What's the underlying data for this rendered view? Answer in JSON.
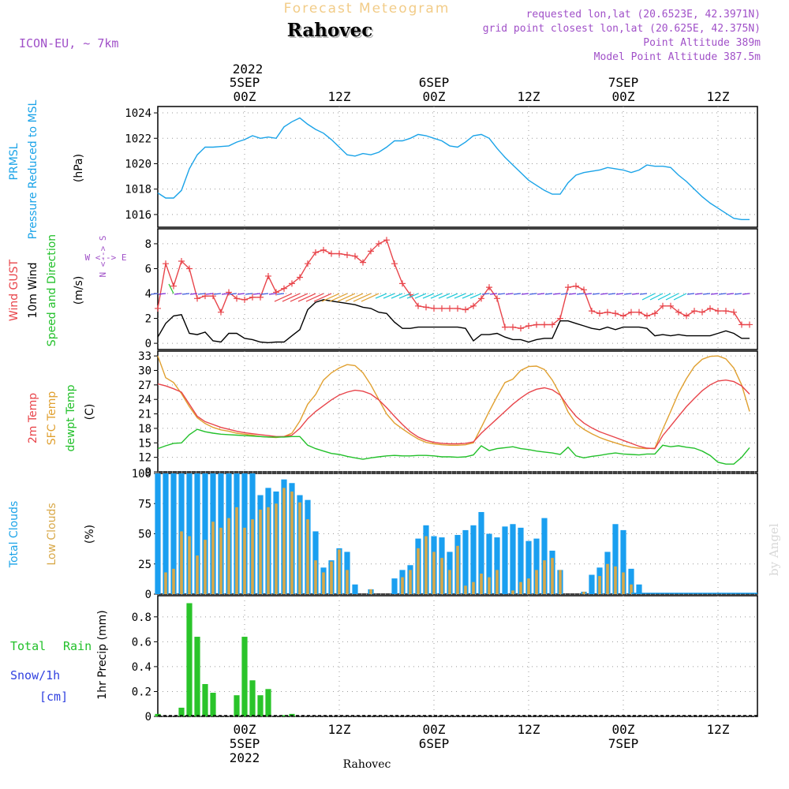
{
  "header": {
    "subtitle": "Forecast Meteogram",
    "location": "Rahovec",
    "model": "ICON-EU, ~ 7km",
    "requested": "requested lon,lat (20.6523E, 42.3971N)",
    "grid_point": "grid point closest lon,lat (20.625E, 42.375N)",
    "point_altitude": "Point Altitude 389m",
    "model_altitude": "Model Point Altitude 387.5m"
  },
  "footer": {
    "location": "Rahovec",
    "watermark": "by Angel"
  },
  "time_axis": {
    "year": "2022",
    "ticks": [
      {
        "hour": 0,
        "label": "00Z",
        "date": "5SEP"
      },
      {
        "hour": 12,
        "label": "12Z",
        "date": ""
      },
      {
        "hour": 24,
        "label": "00Z",
        "date": "6SEP"
      },
      {
        "hour": 36,
        "label": "12Z",
        "date": ""
      },
      {
        "hour": 48,
        "label": "00Z",
        "date": "7SEP"
      },
      {
        "hour": 60,
        "label": "12Z",
        "date": ""
      }
    ],
    "range_hours": [
      -11,
      65
    ]
  },
  "colors": {
    "pressure": "#1aa3e8",
    "gust": "#e8444a",
    "wind": "#000000",
    "wind_dir": "#22c02a",
    "temp": "#e8444a",
    "sfc": "#e0a030",
    "dewpt": "#22c02a",
    "total_clouds": "#1a9ff0",
    "low_clouds": "#d8a848",
    "rain": "#2ac42a",
    "snow": "#3040e0",
    "axis_label_purple": "#a050c8"
  },
  "chart_data": [
    {
      "type": "line",
      "id": "pressure",
      "labels": {
        "l1": "PRMSL",
        "l2": "Pressure Reduced to MSL",
        "unit": "(hPa)"
      },
      "ylim": [
        1015,
        1024.5
      ],
      "yticks": [
        "1016",
        "1018",
        "1020",
        "1022",
        "1024"
      ],
      "x": [
        -11,
        -10,
        -9,
        -8,
        -7,
        -6,
        -5,
        -4,
        -3,
        -2,
        -1,
        0,
        1,
        2,
        3,
        4,
        5,
        6,
        7,
        8,
        9,
        10,
        11,
        12,
        13,
        14,
        15,
        16,
        17,
        18,
        19,
        20,
        21,
        22,
        23,
        24,
        25,
        26,
        27,
        28,
        29,
        30,
        31,
        32,
        33,
        34,
        35,
        36,
        37,
        38,
        39,
        40,
        41,
        42,
        43,
        44,
        45,
        46,
        47,
        48,
        49,
        50,
        51,
        52,
        53,
        54,
        55,
        56,
        57,
        58,
        59,
        60,
        61,
        62,
        63,
        64
      ],
      "values": [
        1017.7,
        1017.3,
        1017.3,
        1017.9,
        1019.6,
        1020.7,
        1021.3,
        1021.3,
        1021.35,
        1021.4,
        1021.7,
        1021.9,
        1022.2,
        1022.0,
        1022.1,
        1022.0,
        1022.9,
        1023.3,
        1023.6,
        1023.1,
        1022.7,
        1022.4,
        1021.9,
        1021.3,
        1020.7,
        1020.6,
        1020.8,
        1020.7,
        1020.9,
        1021.3,
        1021.8,
        1021.8,
        1022.0,
        1022.3,
        1022.2,
        1022.0,
        1021.8,
        1021.4,
        1021.3,
        1021.7,
        1022.2,
        1022.3,
        1022.0,
        1021.2,
        1020.5,
        1019.9,
        1019.3,
        1018.7,
        1018.3,
        1017.9,
        1017.6,
        1017.6,
        1018.5,
        1019.1,
        1019.3,
        1019.4,
        1019.5,
        1019.7,
        1019.6,
        1019.5,
        1019.3,
        1019.5,
        1019.9,
        1019.8,
        1019.8,
        1019.7,
        1019.1,
        1018.6,
        1018.0,
        1017.4,
        1016.9,
        1016.5,
        1016.1,
        1015.7,
        1015.6,
        1015.6
      ]
    },
    {
      "type": "line",
      "id": "wind",
      "labels": {
        "l1": "Wind GUST",
        "l2": "10m Wind",
        "l3": "Speed and Direction",
        "unit": "(m/s)",
        "compass_ns": "N <--> S",
        "compass_we": "W <--> E",
        "compass_n": "N",
        "compass_s": "S"
      },
      "ylim": [
        -0.5,
        9.2
      ],
      "yticks": [
        "0",
        "2",
        "4",
        "6",
        "8"
      ],
      "x": [
        -11,
        -10,
        -9,
        -8,
        -7,
        -6,
        -5,
        -4,
        -3,
        -2,
        -1,
        0,
        1,
        2,
        3,
        4,
        5,
        6,
        7,
        8,
        9,
        10,
        11,
        12,
        13,
        14,
        15,
        16,
        17,
        18,
        19,
        20,
        21,
        22,
        23,
        24,
        25,
        26,
        27,
        28,
        29,
        30,
        31,
        32,
        33,
        34,
        35,
        36,
        37,
        38,
        39,
        40,
        41,
        42,
        43,
        44,
        45,
        46,
        47,
        48,
        49,
        50,
        51,
        52,
        53,
        54,
        55,
        56,
        57,
        58,
        59,
        60,
        61,
        62,
        63,
        64
      ],
      "series": [
        {
          "name": "Wind GUST",
          "values": [
            2.8,
            6.4,
            4.6,
            6.6,
            6.0,
            3.6,
            3.8,
            3.8,
            2.5,
            4.1,
            3.6,
            3.5,
            3.7,
            3.7,
            5.4,
            4.1,
            4.4,
            4.8,
            5.3,
            6.4,
            7.3,
            7.5,
            7.2,
            7.2,
            7.1,
            7.0,
            6.5,
            7.4,
            8.0,
            8.3,
            6.4,
            4.8,
            3.9,
            3.0,
            2.9,
            2.8,
            2.8,
            2.8,
            2.8,
            2.7,
            3.0,
            3.6,
            4.5,
            3.6,
            1.3,
            1.3,
            1.2,
            1.4,
            1.5,
            1.5,
            1.5,
            2.0,
            4.5,
            4.6,
            4.3,
            2.6,
            2.4,
            2.5,
            2.4,
            2.2,
            2.5,
            2.5,
            2.2,
            2.4,
            3.0,
            3.0,
            2.5,
            2.2,
            2.6,
            2.5,
            2.8,
            2.6,
            2.6,
            2.5,
            1.5,
            1.5
          ]
        },
        {
          "name": "10m Wind",
          "values": [
            0.5,
            1.6,
            2.2,
            2.3,
            0.8,
            0.7,
            0.9,
            0.2,
            0.1,
            0.8,
            0.8,
            0.4,
            0.3,
            0.1,
            0.05,
            0.1,
            0.1,
            0.6,
            1.1,
            2.7,
            3.3,
            3.5,
            3.4,
            3.3,
            3.2,
            3.1,
            2.9,
            2.8,
            2.5,
            2.4,
            1.7,
            1.2,
            1.2,
            1.3,
            1.3,
            1.3,
            1.3,
            1.3,
            1.3,
            1.2,
            0.2,
            0.7,
            0.7,
            0.8,
            0.5,
            0.3,
            0.3,
            0.1,
            0.3,
            0.4,
            0.4,
            1.8,
            1.8,
            1.6,
            1.4,
            1.2,
            1.1,
            1.3,
            1.1,
            1.3,
            1.3,
            1.3,
            1.2,
            0.6,
            0.7,
            0.6,
            0.7,
            0.6,
            0.6,
            0.6,
            0.6,
            0.8,
            1.0,
            0.8,
            0.4,
            0.4
          ]
        }
      ]
    },
    {
      "type": "line",
      "id": "temperature",
      "labels": {
        "l1": "2m Temp",
        "l2": "SFC Temp",
        "l3": "dewpt Temp",
        "unit": "(C)"
      },
      "ylim": [
        9,
        34
      ],
      "yticks": [
        "9",
        "12",
        "15",
        "18",
        "21",
        "24",
        "27",
        "30",
        "33"
      ],
      "x": [
        -11,
        -10,
        -9,
        -8,
        -7,
        -6,
        -5,
        -4,
        -3,
        -2,
        -1,
        0,
        1,
        2,
        3,
        4,
        5,
        6,
        7,
        8,
        9,
        10,
        11,
        12,
        13,
        14,
        15,
        16,
        17,
        18,
        19,
        20,
        21,
        22,
        23,
        24,
        25,
        26,
        27,
        28,
        29,
        30,
        31,
        32,
        33,
        34,
        35,
        36,
        37,
        38,
        39,
        40,
        41,
        42,
        43,
        44,
        45,
        46,
        47,
        48,
        49,
        50,
        51,
        52,
        53,
        54,
        55,
        56,
        57,
        58,
        59,
        60,
        61,
        62,
        63,
        64
      ],
      "series": [
        {
          "name": "2m Temp",
          "values": [
            27.2,
            26.8,
            26.2,
            25.5,
            23.0,
            20.5,
            19.4,
            18.8,
            18.2,
            17.8,
            17.4,
            17.1,
            16.9,
            16.7,
            16.5,
            16.3,
            16.3,
            16.6,
            18.0,
            20.0,
            21.5,
            22.7,
            23.9,
            24.9,
            25.5,
            25.9,
            25.7,
            25.1,
            23.9,
            22.3,
            20.5,
            18.8,
            17.3,
            16.2,
            15.5,
            15.1,
            14.9,
            14.8,
            14.8,
            14.9,
            15.2,
            17.0,
            18.5,
            20.0,
            21.5,
            23.0,
            24.3,
            25.4,
            26.1,
            26.4,
            26.0,
            24.9,
            22.5,
            20.5,
            19.1,
            18.1,
            17.3,
            16.7,
            16.1,
            15.5,
            14.9,
            14.3,
            13.9,
            13.8,
            16.5,
            18.5,
            20.5,
            22.5,
            24.2,
            25.8,
            27.0,
            27.8,
            28.0,
            27.7,
            26.8,
            25.1
          ]
        },
        {
          "name": "SFC Temp",
          "values": [
            33.0,
            28.5,
            27.5,
            25.2,
            22.5,
            20.2,
            19.0,
            18.2,
            17.7,
            17.4,
            17.0,
            16.8,
            16.6,
            16.3,
            16.2,
            16.1,
            16.3,
            17.0,
            19.5,
            23.0,
            25.0,
            28.0,
            29.5,
            30.5,
            31.2,
            31.0,
            29.5,
            27.0,
            24.0,
            21.0,
            19.1,
            17.9,
            16.8,
            15.8,
            15.1,
            14.8,
            14.6,
            14.5,
            14.5,
            14.6,
            15.0,
            18.2,
            21.5,
            24.6,
            27.5,
            28.2,
            30.0,
            30.8,
            30.9,
            30.2,
            28.0,
            25.0,
            21.4,
            19.0,
            17.8,
            16.9,
            16.1,
            15.5,
            15.0,
            14.5,
            14.1,
            13.9,
            13.8,
            13.9,
            17.8,
            21.5,
            25.3,
            28.3,
            30.8,
            32.3,
            32.9,
            33.0,
            32.4,
            30.5,
            27.0,
            21.5
          ]
        },
        {
          "name": "dewpt Temp",
          "values": [
            13.8,
            14.4,
            14.9,
            15.0,
            16.7,
            17.8,
            17.3,
            17.0,
            16.8,
            16.7,
            16.6,
            16.5,
            16.4,
            16.3,
            16.2,
            16.2,
            16.2,
            16.3,
            16.3,
            14.5,
            13.8,
            13.3,
            12.8,
            12.6,
            12.2,
            11.9,
            11.6,
            11.9,
            12.1,
            12.3,
            12.4,
            12.3,
            12.3,
            12.4,
            12.4,
            12.3,
            12.1,
            12.1,
            12.0,
            12.1,
            12.5,
            14.4,
            13.4,
            13.8,
            14.0,
            14.2,
            13.8,
            13.6,
            13.3,
            13.1,
            12.9,
            12.6,
            14.1,
            12.3,
            11.9,
            12.2,
            12.4,
            12.7,
            12.9,
            12.7,
            12.6,
            12.5,
            12.7,
            12.7,
            14.5,
            14.2,
            14.4,
            14.1,
            13.9,
            13.3,
            12.4,
            11.0,
            10.6,
            10.6,
            12.0,
            14.0
          ]
        }
      ]
    },
    {
      "type": "bar",
      "id": "clouds",
      "labels": {
        "l1": "Total Clouds",
        "l2": "Low Clouds",
        "unit": "(%)"
      },
      "ylim": [
        0,
        100
      ],
      "yticks": [
        "0",
        "25",
        "50",
        "75",
        "100"
      ],
      "x": [
        -11,
        -10,
        -9,
        -8,
        -7,
        -6,
        -5,
        -4,
        -3,
        -2,
        -1,
        0,
        1,
        2,
        3,
        4,
        5,
        6,
        7,
        8,
        9,
        10,
        11,
        12,
        13,
        14,
        15,
        16,
        17,
        18,
        19,
        20,
        21,
        22,
        23,
        24,
        25,
        26,
        27,
        28,
        29,
        30,
        31,
        32,
        33,
        34,
        35,
        36,
        37,
        38,
        39,
        40,
        41,
        42,
        43,
        44,
        45,
        46,
        47,
        48,
        49,
        50,
        51,
        52,
        53,
        54,
        55,
        56,
        57,
        58,
        59,
        60,
        61,
        62,
        63,
        64
      ],
      "series": [
        {
          "name": "Total Clouds",
          "values": [
            100,
            100,
            100,
            100,
            100,
            100,
            100,
            100,
            100,
            100,
            100,
            100,
            100,
            82,
            88,
            85,
            95,
            92,
            82,
            78,
            52,
            22,
            28,
            38,
            35,
            8,
            0,
            4,
            0,
            0,
            13,
            20,
            24,
            46,
            57,
            48,
            47,
            35,
            49,
            53,
            57,
            68,
            50,
            47,
            56,
            58,
            55,
            44,
            46,
            63,
            36,
            20,
            0,
            0,
            2,
            16,
            22,
            35,
            58,
            53,
            21,
            8,
            0,
            0,
            0,
            0,
            0,
            0,
            0,
            0,
            0,
            0,
            0,
            0,
            0,
            0
          ]
        },
        {
          "name": "Low Clouds",
          "values": [
            0,
            18,
            21,
            52,
            48,
            32,
            45,
            60,
            55,
            63,
            72,
            55,
            62,
            70,
            72,
            75,
            88,
            85,
            76,
            62,
            28,
            18,
            27,
            37,
            20,
            0,
            0,
            4,
            0,
            0,
            0,
            14,
            20,
            38,
            48,
            35,
            30,
            20,
            40,
            7,
            10,
            17,
            14,
            20,
            0,
            3,
            10,
            13,
            20,
            28,
            30,
            20,
            0,
            0,
            2,
            0,
            15,
            25,
            23,
            18,
            8,
            0,
            0,
            0,
            0,
            0,
            0,
            0,
            0,
            0,
            0,
            0,
            0,
            0,
            0,
            0
          ]
        }
      ]
    },
    {
      "type": "bar",
      "id": "precip",
      "labels": {
        "total": "Total",
        "rain": "Rain",
        "snow": "Snow/1h",
        "cm": "[cm]",
        "unit": "1hr Precip (mm)"
      },
      "ylim": [
        0,
        0.97
      ],
      "yticks": [
        "0",
        "0.2",
        "0.4",
        "0.6",
        "0.8"
      ],
      "x": [
        -11,
        -10,
        -9,
        -8,
        -7,
        -6,
        -5,
        -4,
        -3,
        -2,
        -1,
        0,
        1,
        2,
        3,
        4,
        5,
        6,
        7,
        8,
        9,
        10,
        11,
        12,
        13,
        14,
        15,
        16,
        17,
        18,
        19,
        20,
        21,
        22,
        23,
        24,
        25,
        26,
        27,
        28,
        29,
        30,
        31,
        32,
        33,
        34,
        35,
        36,
        37,
        38,
        39,
        40,
        41,
        42,
        43,
        44,
        45,
        46,
        47,
        48,
        49,
        50,
        51,
        52,
        53,
        54,
        55,
        56,
        57,
        58,
        59,
        60,
        61,
        62,
        63,
        64
      ],
      "values": [
        0.02,
        0,
        0,
        0.07,
        0.91,
        0.64,
        0.26,
        0.19,
        0,
        0,
        0.17,
        0.64,
        0.29,
        0.17,
        0.22,
        0,
        0.01,
        0.02,
        0,
        0,
        0,
        0,
        0,
        0,
        0,
        0,
        0,
        0,
        0,
        0,
        0,
        0,
        0,
        0,
        0,
        0,
        0,
        0,
        0,
        0,
        0,
        0,
        0,
        0,
        0,
        0,
        0,
        0,
        0,
        0,
        0,
        0,
        0,
        0,
        0,
        0,
        0,
        0,
        0,
        0,
        0,
        0,
        0,
        0,
        0,
        0,
        0,
        0,
        0,
        0,
        0,
        0,
        0,
        0,
        0,
        0
      ]
    }
  ]
}
